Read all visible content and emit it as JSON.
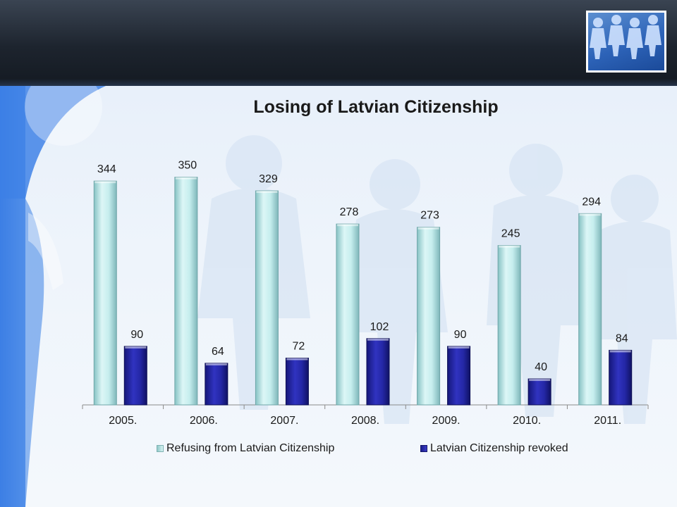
{
  "chart_data": {
    "type": "bar",
    "title": "Losing of Latvian Citizenship",
    "categories": [
      "2005.",
      "2006.",
      "2007.",
      "2008.",
      "2009.",
      "2010.",
      "2011."
    ],
    "series": [
      {
        "name": "Refusing from Latvian Citizenship",
        "values": [
          344,
          350,
          329,
          278,
          273,
          245,
          294
        ],
        "color": "#bfeeee"
      },
      {
        "name": "Latvian Citizenship revoked",
        "values": [
          90,
          64,
          72,
          102,
          90,
          40,
          84
        ],
        "color": "#2528a8"
      }
    ],
    "ylim": [
      0,
      370
    ],
    "grid": false,
    "legend_position": "bottom"
  },
  "colors": {
    "header": "#1d242e",
    "slide_background": "#e8f0fa",
    "accent_blue": "#2a6ee0"
  },
  "icons": {
    "logo": "people-chain-logo-icon"
  }
}
